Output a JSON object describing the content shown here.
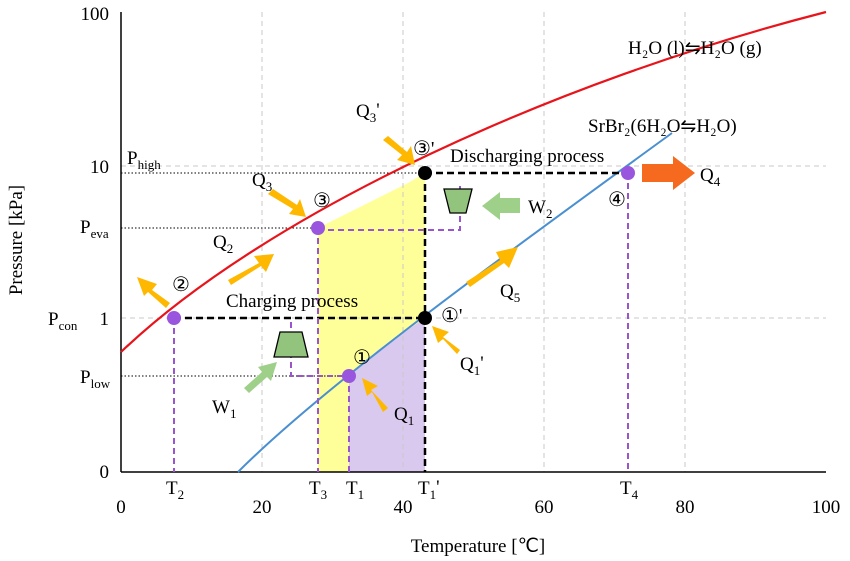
{
  "axes": {
    "xlabel": "Temperature [℃]",
    "ylabel": "Pressure [kPa]",
    "x_ticks": [
      "0",
      "20",
      "40",
      "60",
      "80",
      "100"
    ],
    "y_ticks": [
      "0",
      "1",
      "10",
      "100"
    ]
  },
  "curves": {
    "water_label": "H₂O (l)⇋H₂O (g)",
    "salt_label": "SrBr₂(6H₂O⇋H₂O)",
    "water_color": "#e8141b",
    "salt_color": "#4a8fd0"
  },
  "pressure_levels": {
    "high": {
      "main": "P",
      "sub": "high"
    },
    "eva": {
      "main": "P",
      "sub": "eva"
    },
    "con": {
      "main": "P",
      "sub": "con"
    },
    "low": {
      "main": "P",
      "sub": "low"
    }
  },
  "temperatures": {
    "T2": {
      "main": "T",
      "sub": "2"
    },
    "T3": {
      "main": "T",
      "sub": "3"
    },
    "T1": {
      "main": "T",
      "sub": "1"
    },
    "T1p": {
      "main": "T",
      "sub": "1",
      "prime": "'"
    },
    "T4": {
      "main": "T",
      "sub": "4"
    }
  },
  "processes": {
    "charging": "Charging process",
    "discharging": "Discharging process"
  },
  "states": {
    "s1": "①",
    "s1p": "①'",
    "s2": "②",
    "s3": "③",
    "s3p": "③'",
    "s4": "④"
  },
  "heat_labels": {
    "Q1": {
      "main": "Q",
      "sub": "1"
    },
    "Q1p": {
      "main": "Q",
      "sub": "1",
      "prime": "'"
    },
    "Q2": {
      "main": "Q",
      "sub": "2"
    },
    "Q3": {
      "main": "Q",
      "sub": "3"
    },
    "Q3p": {
      "main": "Q",
      "sub": "3",
      "prime": "'"
    },
    "Q4": {
      "main": "Q",
      "sub": "4"
    },
    "Q5": {
      "main": "Q",
      "sub": "5"
    },
    "W1": {
      "main": "W",
      "sub": "1"
    },
    "W2": {
      "main": "W",
      "sub": "2"
    }
  },
  "colors": {
    "yellow_region": "#ffff99",
    "purple_region": "#d9c9ee",
    "point_purple": "#9955dd",
    "dash_purple": "#9955cc",
    "arrow_orange": "#ffb800",
    "arrow_dark_orange": "#f56a1e",
    "arrow_green": "#9fd08a",
    "compressor_green": "#93c47d"
  }
}
